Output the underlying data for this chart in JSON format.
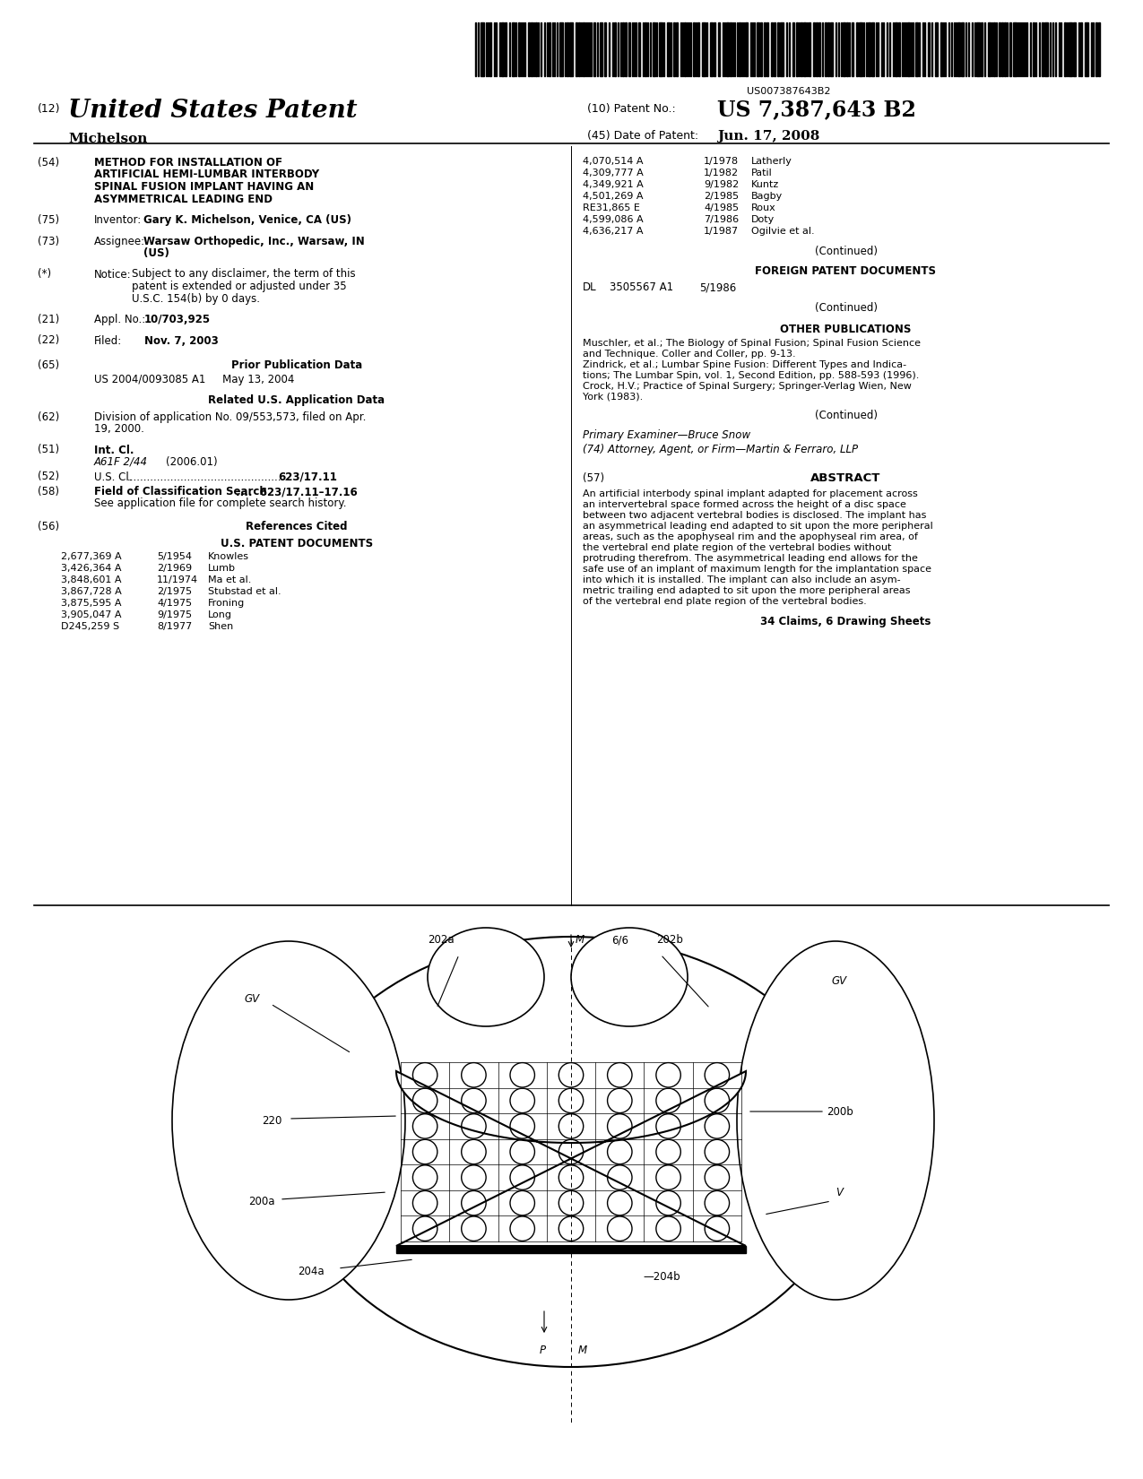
{
  "background_color": "#ffffff",
  "barcode_text": "US007387643B2",
  "patent_number": "US 7,387,643 B2",
  "patent_date": "Jun. 17, 2008",
  "title_header": "United States Patent",
  "inventor_name": "Michelson",
  "section_54_title_line1": "METHOD FOR INSTALLATION OF",
  "section_54_title_line2": "ARTIFICIAL HEMI-LUMBAR INTERBODY",
  "section_54_title_line3": "SPINAL FUSION IMPLANT HAVING AN",
  "section_54_title_line4": "ASYMMETRICAL LEADING END",
  "section_75_text_label": "Inventor:",
  "section_75_text_val": "Gary K. Michelson, Venice, CA (US)",
  "section_73_line1_label": "Assignee:",
  "section_73_line1_val": "Warsaw Orthopedic, Inc., Warsaw, IN",
  "section_73_line2": "(US)",
  "section_star_line1": "Subject to any disclaimer, the term of this",
  "section_star_line2": "patent is extended or adjusted under 35",
  "section_star_line3": "U.S.C. 154(b) by 0 days.",
  "section_21_text": "Appl. No.:",
  "section_21_val": "10/703,925",
  "section_22_label": "Filed:",
  "section_22_val": "Nov. 7, 2003",
  "section_65_title": "Prior Publication Data",
  "section_65_text": "US 2004/0093085 A1     May 13, 2004",
  "related_us_title": "Related U.S. Application Data",
  "section_62_line1": "Division of application No. 09/553,573, filed on Apr.",
  "section_62_line2": "19, 2000.",
  "section_51_line1": "Int. Cl.",
  "section_51_line2": "A61F 2/44",
  "section_51_line2b": "(2006.01)",
  "section_52_label": "U.S. Cl.",
  "section_52_dots": "................................................",
  "section_52_val": "623/17.11",
  "section_58_line1a": "Field of Classification Search",
  "section_58_line1b": "....  623/17.11–17.16",
  "section_58_line2": "See application file for complete search history.",
  "section_56_title": "References Cited",
  "us_patent_docs_title": "U.S. PATENT DOCUMENTS",
  "us_patents": [
    [
      "2,677,369 A",
      "5/1954",
      "Knowles"
    ],
    [
      "3,426,364 A",
      "2/1969",
      "Lumb"
    ],
    [
      "3,848,601 A",
      "11/1974",
      "Ma et al."
    ],
    [
      "3,867,728 A",
      "2/1975",
      "Stubstad et al."
    ],
    [
      "3,875,595 A",
      "4/1975",
      "Froning"
    ],
    [
      "3,905,047 A",
      "9/1975",
      "Long"
    ],
    [
      "D245,259 S",
      "8/1977",
      "Shen"
    ]
  ],
  "us_patents_right": [
    [
      "4,070,514 A",
      "1/1978",
      "Latherly"
    ],
    [
      "4,309,777 A",
      "1/1982",
      "Patil"
    ],
    [
      "4,349,921 A",
      "9/1982",
      "Kuntz"
    ],
    [
      "4,501,269 A",
      "2/1985",
      "Bagby"
    ],
    [
      "RE31,865 E",
      "4/1985",
      "Roux"
    ],
    [
      "4,599,086 A",
      "7/1986",
      "Doty"
    ],
    [
      "4,636,217 A",
      "1/1987",
      "Ogilvie et al."
    ]
  ],
  "continued_right1": "(Continued)",
  "foreign_patent_title": "FOREIGN PATENT DOCUMENTS",
  "foreign_patent_country": "DL",
  "foreign_patent_num": "3505567 A1",
  "foreign_patent_date": "5/1986",
  "continued_right2": "(Continued)",
  "other_pub_title": "OTHER PUBLICATIONS",
  "other_pub_lines": [
    "Muschler, et al.; The Biology of Spinal Fusion; Spinal Fusion Science",
    "and Technique. Coller and Coller, pp. 9-13.",
    "Zindrick, et al.; Lumbar Spine Fusion: Different Types and Indica-",
    "tions; The Lumbar Spin, vol. 1, Second Edition, pp. 588-593 (1996).",
    "Crock, H.V.; Practice of Spinal Surgery; Springer-Verlag Wien, New",
    "York (1983)."
  ],
  "continued_right3": "(Continued)",
  "primary_examiner": "Primary Examiner—Bruce Snow",
  "attorney_line": "(74) Attorney, Agent, or Firm—Martin & Ferraro, LLP",
  "abstract_title": "ABSTRACT",
  "abstract_text": "An artificial interbody spinal implant adapted for placement across an intervertebral space formed across the height of a disc space between two adjacent vertebral bodies is disclosed. The implant has an asymmetrical leading end adapted to sit upon the more peripheral areas, such as the apophyseal rim and the apophyseal rim area, of the vertebral end plate region of the vertebral bodies without protruding therefrom. The asymmetrical leading end allows for the safe use of an implant of maximum length for the implantation space into which it is installed. The implant can also include an asym-metric trailing end adapted to sit upon the more peripheral areas of the vertebral end plate region of the vertebral bodies.",
  "claims_line": "34 Claims, 6 Drawing Sheets"
}
